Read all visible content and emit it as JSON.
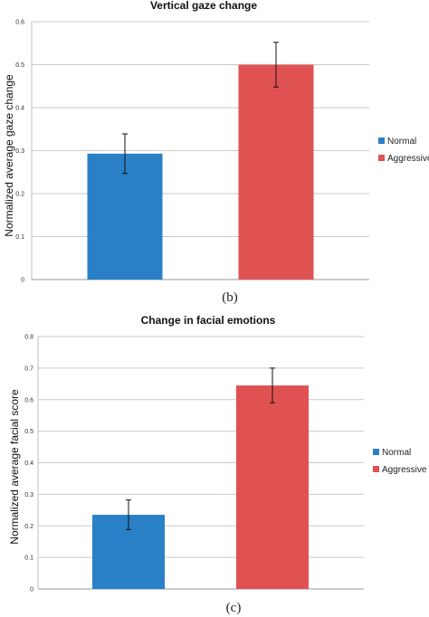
{
  "chart_data": [
    {
      "type": "bar",
      "title": "Vertical gaze change",
      "ylabel": "Normalized average gaze change",
      "xlabel": "",
      "categories": [
        "Normal",
        "Aggressive"
      ],
      "values": [
        0.293,
        0.5
      ],
      "errors": [
        0.046,
        0.052
      ],
      "colors": [
        "#2a80c6",
        "#e05252"
      ],
      "ylim": [
        0,
        0.6
      ],
      "yticks": [
        "0",
        "0.1",
        "0.2",
        "0.3",
        "0.4",
        "0.5",
        "0.6"
      ],
      "grid": true,
      "legend": {
        "position": "right",
        "entries": [
          "Normal",
          "Aggressive"
        ]
      },
      "caption": "(b)"
    },
    {
      "type": "bar",
      "title": "Change in facial emotions",
      "ylabel": "Normalized average facial score",
      "xlabel": "",
      "categories": [
        "Normal",
        "Aggressive"
      ],
      "values": [
        0.235,
        0.645
      ],
      "errors": [
        0.047,
        0.055
      ],
      "colors": [
        "#2a80c6",
        "#e05252"
      ],
      "ylim": [
        0,
        0.8
      ],
      "yticks": [
        "0",
        "0.1",
        "0.2",
        "0.3",
        "0.4",
        "0.5",
        "0.6",
        "0.7",
        "0.8"
      ],
      "grid": true,
      "legend": {
        "position": "right",
        "entries": [
          "Normal",
          "Aggressive"
        ]
      },
      "caption": "(c)"
    }
  ]
}
